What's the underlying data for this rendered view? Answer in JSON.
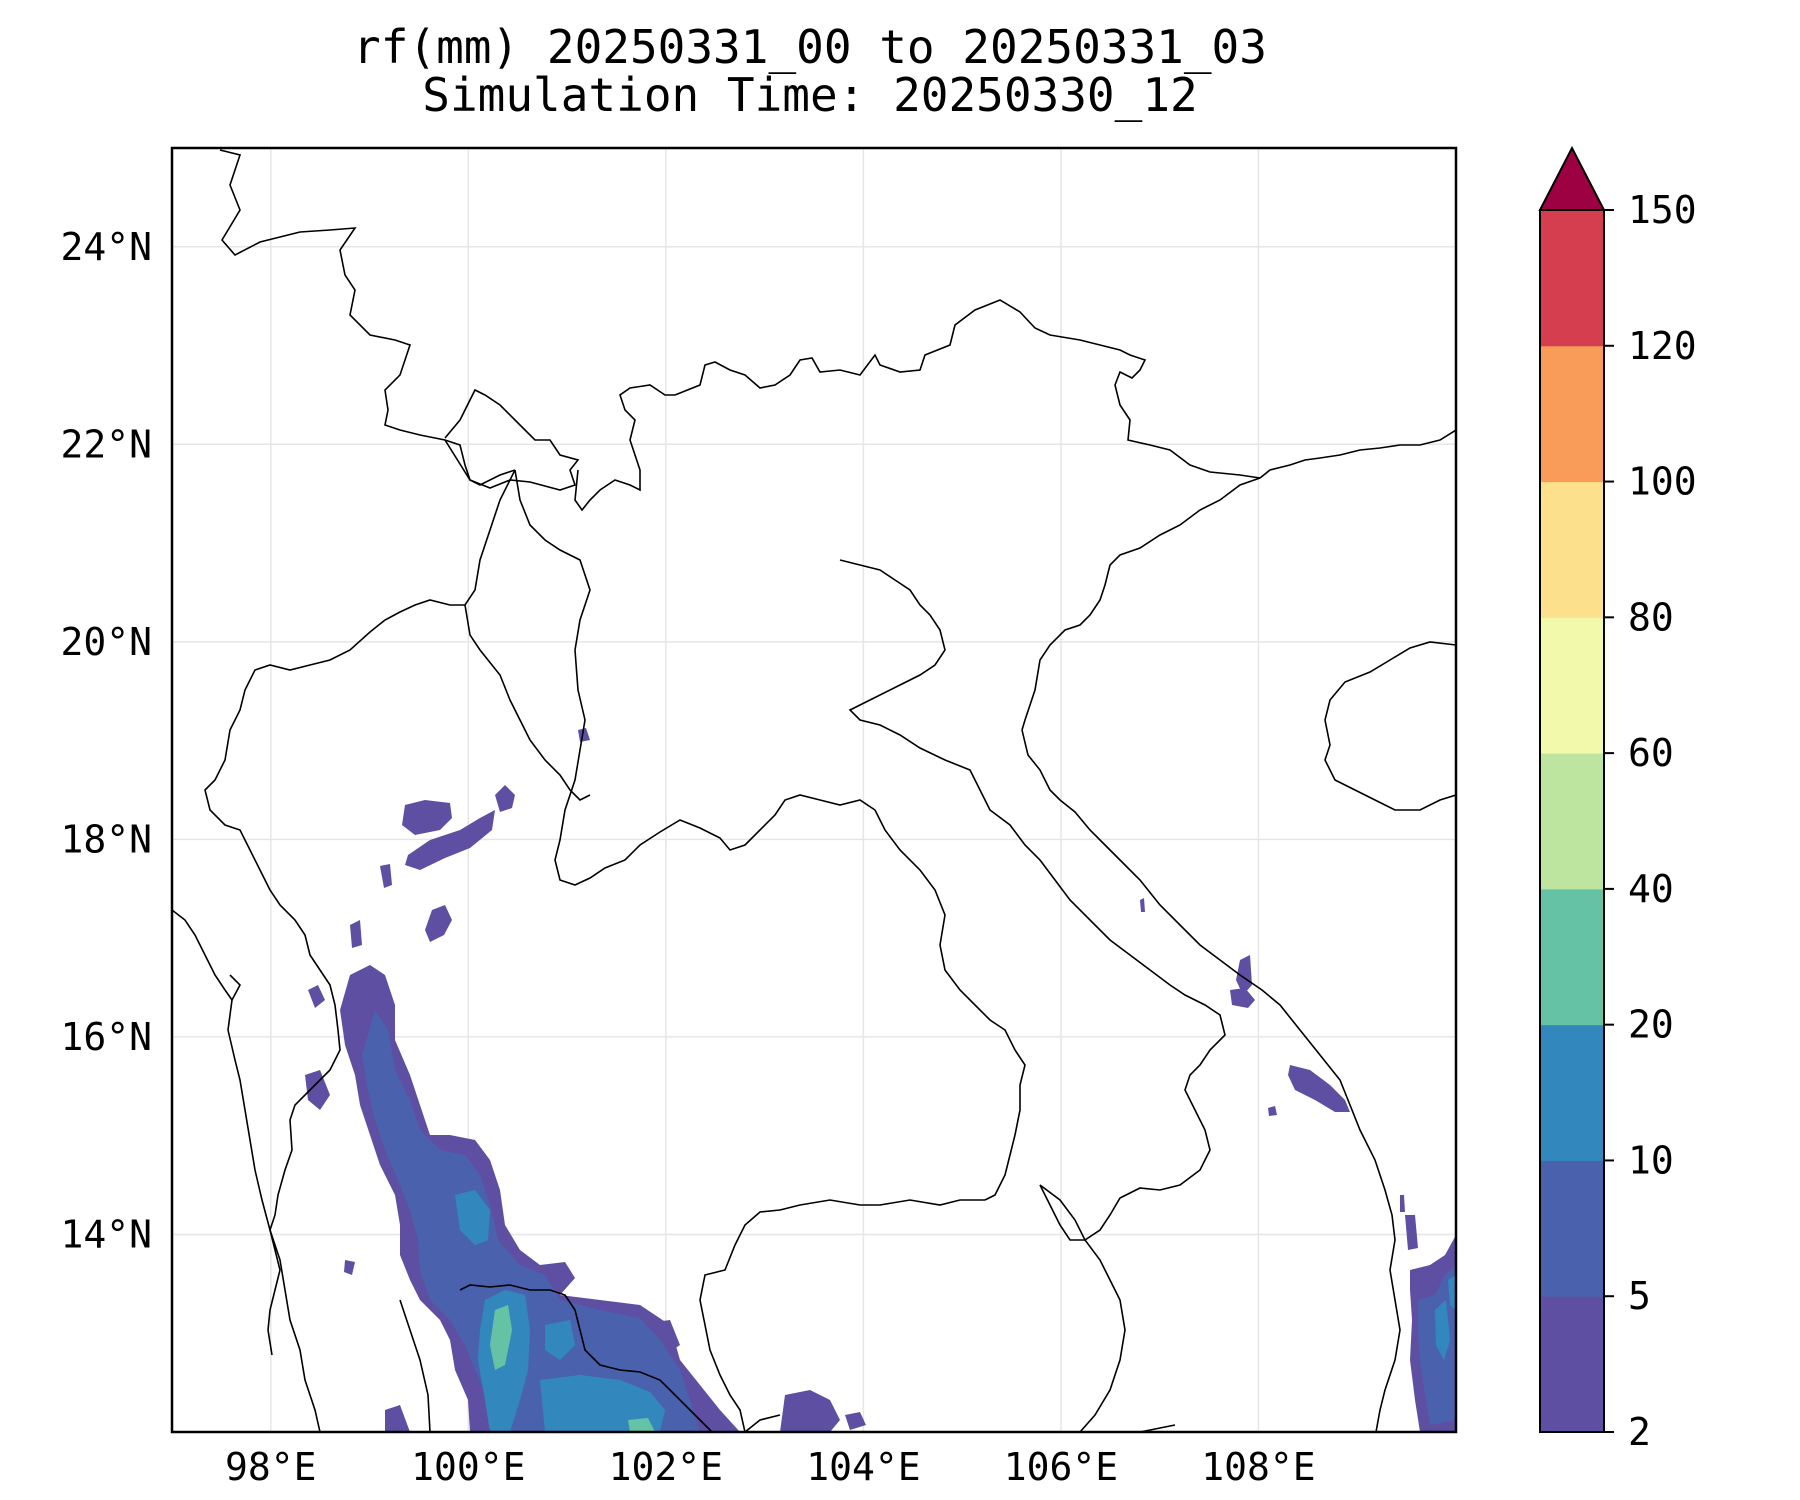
{
  "title": {
    "line1": "rf(mm) 20250331_00 to 20250331_03",
    "line2": "Simulation Time: 20250330_12"
  },
  "map": {
    "lon_range": [
      97.0,
      110.0
    ],
    "lat_range": [
      12.0,
      25.0
    ],
    "x_ticks": [
      "98°E",
      "100°E",
      "102°E",
      "104°E",
      "106°E",
      "108°E"
    ],
    "x_tick_values": [
      98,
      100,
      102,
      104,
      106,
      108
    ],
    "y_ticks": [
      "24°N",
      "22°N",
      "20°N",
      "18°N",
      "16°N",
      "14°N"
    ],
    "y_tick_values": [
      24,
      22,
      20,
      18,
      16,
      14
    ],
    "gridlines": true,
    "field": "rainfall accumulation (mm)"
  },
  "colorbar": {
    "levels": [
      "2",
      "5",
      "10",
      "20",
      "40",
      "60",
      "80",
      "100",
      "120",
      "150"
    ],
    "colors": [
      "#5e4fa2",
      "#4a62ae",
      "#3288bd",
      "#66c2a5",
      "#bde5a0",
      "#f3f9aa",
      "#fde08b",
      "#f99c59",
      "#d53e4f",
      "#9e0142"
    ],
    "extend": "max"
  },
  "rain_areas": [
    {
      "level": "2-5",
      "region": "northern Thailand near 18°N 100°E"
    },
    {
      "level": "5-20",
      "region": "western Thailand 13-16°N 99-101°E"
    },
    {
      "level": "20-40",
      "region": "Gulf of Thailand coast near 13°N 100.5°E"
    },
    {
      "level": "2-10",
      "region": "central Vietnam coast near 15.5°N 108.5°E"
    },
    {
      "level": "2-10",
      "region": "southern Vietnam coast near 13°N 109.5°E"
    }
  ]
}
